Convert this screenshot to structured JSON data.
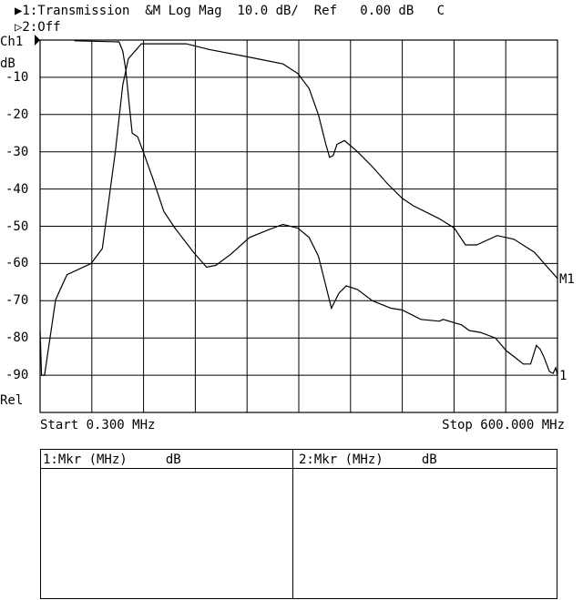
{
  "header": {
    "channel1_line": "▶1:Transmission  &M Log Mag  10.0 dB/  Ref   0.00 dB   C",
    "channel2_line": "▷2:Off"
  },
  "chart_data": {
    "type": "line",
    "channel_label": "Ch1",
    "ylabel": "dB",
    "bottom_label": "Rel",
    "xlim": [
      0.3,
      600.0
    ],
    "ylim": [
      -100,
      0
    ],
    "x_unit": "MHz",
    "grid": true,
    "y_ticks": [
      -10,
      -20,
      -30,
      -40,
      -50,
      -60,
      -70,
      -80,
      -90
    ],
    "y_tick_labels": [
      "-10",
      "-20",
      "-30",
      "-40",
      "-50",
      "-60",
      "-70",
      "-80",
      "-90"
    ],
    "start_label": "Start 0.300 MHz",
    "stop_label": "Stop 600.000 MHz",
    "series": [
      {
        "end_label": "M1",
        "x": [
          0.3,
          2,
          5.5,
          18.4,
          31.4,
          59.5,
          72.4,
          78.9,
          87.5,
          96.2,
          102.6,
          117.7,
          169.6,
          195.5,
          247.3,
          281.8,
          299.1,
          312.1,
          322.8,
          331.5,
          335.8,
          340.1,
          344.4,
          353.1,
          368.2,
          385.5,
          402.7,
          420,
          432.9,
          463.2,
          480.4,
          493.4,
          506.4,
          530.1,
          549.5,
          573.3,
          588.4,
          600
        ],
        "y": [
          -78,
          -90,
          -90,
          -69.7,
          -63,
          -60,
          -56,
          -45,
          -30,
          -12,
          -5,
          -1,
          -1,
          -2.5,
          -4.8,
          -6.4,
          -9,
          -13,
          -20,
          -28,
          -31.5,
          -31,
          -28,
          -27,
          -30,
          -34,
          -38.5,
          -42.5,
          -44.5,
          -48,
          -50.5,
          -55,
          -55,
          -52.5,
          -53.5,
          -57,
          -61,
          -64
        ]
      },
      {
        "end_label": "1",
        "x": [
          40,
          91.8,
          96.2,
          99.6,
          102.6,
          107,
          113.4,
          119.9,
          130.7,
          143.7,
          156.6,
          178.2,
          193.3,
          204.1,
          221.4,
          243,
          264.6,
          281.8,
          299.1,
          312.1,
          322.8,
          331.5,
          338,
          346.6,
          355.2,
          368.2,
          385.5,
          407,
          420,
          441.6,
          463.2,
          467.5,
          489,
          497.7,
          510.7,
          528,
          540.9,
          549.5,
          560.3,
          568.9,
          575.5,
          579.8,
          584.1,
          590.6,
          594.9,
          597.9,
          600
        ],
        "y": [
          -0.2,
          -0.5,
          -3,
          -8,
          -15,
          -25,
          -26,
          -30,
          -37,
          -46,
          -50.5,
          -57,
          -61,
          -60.5,
          -57.5,
          -53,
          -51,
          -49.5,
          -50.5,
          -53,
          -58,
          -66,
          -72,
          -68,
          -66,
          -67,
          -70,
          -72,
          -72.5,
          -75,
          -75.5,
          -75,
          -76.5,
          -78,
          -78.5,
          -80,
          -83.5,
          -85,
          -87,
          -87,
          -82,
          -83,
          -85,
          -89,
          -89.5,
          -88,
          -90
        ]
      }
    ]
  },
  "marker_table": {
    "col1_header": "1:Mkr (MHz)     dB",
    "col2_header": "2:Mkr (MHz)     dB"
  }
}
